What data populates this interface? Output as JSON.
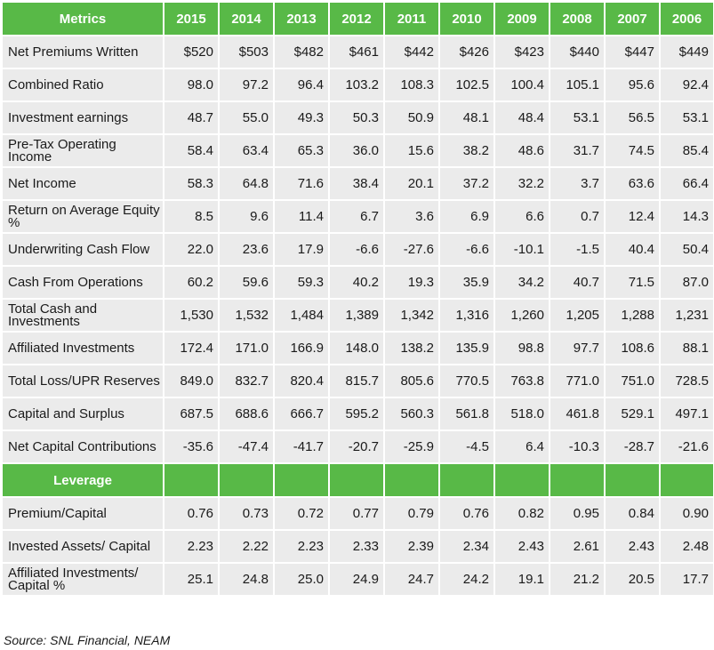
{
  "table": {
    "header": [
      "Metrics",
      "2015",
      "2014",
      "2013",
      "2012",
      "2011",
      "2010",
      "2009",
      "2008",
      "2007",
      "2006"
    ],
    "rows": [
      {
        "label": "Net Premiums Written",
        "values": [
          "$520",
          "$503",
          "$482",
          "$461",
          "$442",
          "$426",
          "$423",
          "$440",
          "$447",
          "$449"
        ]
      },
      {
        "label": "Combined Ratio",
        "values": [
          "98.0",
          "97.2",
          "96.4",
          "103.2",
          "108.3",
          "102.5",
          "100.4",
          "105.1",
          "95.6",
          "92.4"
        ]
      },
      {
        "label": "Investment earnings",
        "values": [
          "48.7",
          "55.0",
          "49.3",
          "50.3",
          "50.9",
          "48.1",
          "48.4",
          "53.1",
          "56.5",
          "53.1"
        ]
      },
      {
        "label": "Pre-Tax Operating Income",
        "values": [
          "58.4",
          "63.4",
          "65.3",
          "36.0",
          "15.6",
          "38.2",
          "48.6",
          "31.7",
          "74.5",
          "85.4"
        ]
      },
      {
        "label": "Net Income",
        "values": [
          "58.3",
          "64.8",
          "71.6",
          "38.4",
          "20.1",
          "37.2",
          "32.2",
          "3.7",
          "63.6",
          "66.4"
        ]
      },
      {
        "label": "Return on Average Equity %",
        "values": [
          "8.5",
          "9.6",
          "11.4",
          "6.7",
          "3.6",
          "6.9",
          "6.6",
          "0.7",
          "12.4",
          "14.3"
        ]
      },
      {
        "label": "Underwriting Cash Flow",
        "values": [
          "22.0",
          "23.6",
          "17.9",
          "-6.6",
          "-27.6",
          "-6.6",
          "-10.1",
          "-1.5",
          "40.4",
          "50.4"
        ]
      },
      {
        "label": "Cash From Operations",
        "values": [
          "60.2",
          "59.6",
          "59.3",
          "40.2",
          "19.3",
          "35.9",
          "34.2",
          "40.7",
          "71.5",
          "87.0"
        ]
      },
      {
        "label": "Total Cash and Investments",
        "values": [
          "1,530",
          "1,532",
          "1,484",
          "1,389",
          "1,342",
          "1,316",
          "1,260",
          "1,205",
          "1,288",
          "1,231"
        ]
      },
      {
        "label": "Affiliated Investments",
        "values": [
          "172.4",
          "171.0",
          "166.9",
          "148.0",
          "138.2",
          "135.9",
          "98.8",
          "97.7",
          "108.6",
          "88.1"
        ]
      },
      {
        "label": "Total Loss/UPR Reserves",
        "values": [
          "849.0",
          "832.7",
          "820.4",
          "815.7",
          "805.6",
          "770.5",
          "763.8",
          "771.0",
          "751.0",
          "728.5"
        ]
      },
      {
        "label": "Capital and Surplus",
        "values": [
          "687.5",
          "688.6",
          "666.7",
          "595.2",
          "560.3",
          "561.8",
          "518.0",
          "461.8",
          "529.1",
          "497.1"
        ]
      },
      {
        "label": "Net Capital Contributions",
        "values": [
          "-35.6",
          "-47.4",
          "-41.7",
          "-20.7",
          "-25.9",
          "-4.5",
          "6.4",
          "-10.3",
          "-28.7",
          "-21.6"
        ]
      }
    ],
    "section_label": "Leverage",
    "leverage_rows": [
      {
        "label": "Premium/Capital",
        "values": [
          "0.76",
          "0.73",
          "0.72",
          "0.77",
          "0.79",
          "0.76",
          "0.82",
          "0.95",
          "0.84",
          "0.90"
        ]
      },
      {
        "label": "Invested Assets/ Capital",
        "values": [
          "2.23",
          "2.22",
          "2.23",
          "2.33",
          "2.39",
          "2.34",
          "2.43",
          "2.61",
          "2.43",
          "2.48"
        ]
      },
      {
        "label": "Affiliated Investments/ Capital %",
        "values": [
          "25.1",
          "24.8",
          "25.0",
          "24.9",
          "24.7",
          "24.2",
          "19.1",
          "21.2",
          "20.5",
          "17.7"
        ]
      }
    ]
  },
  "source": "Source: SNL Financial, NEAM",
  "colors": {
    "header_green": "#58b947",
    "row_gray": "#ebebeb"
  }
}
